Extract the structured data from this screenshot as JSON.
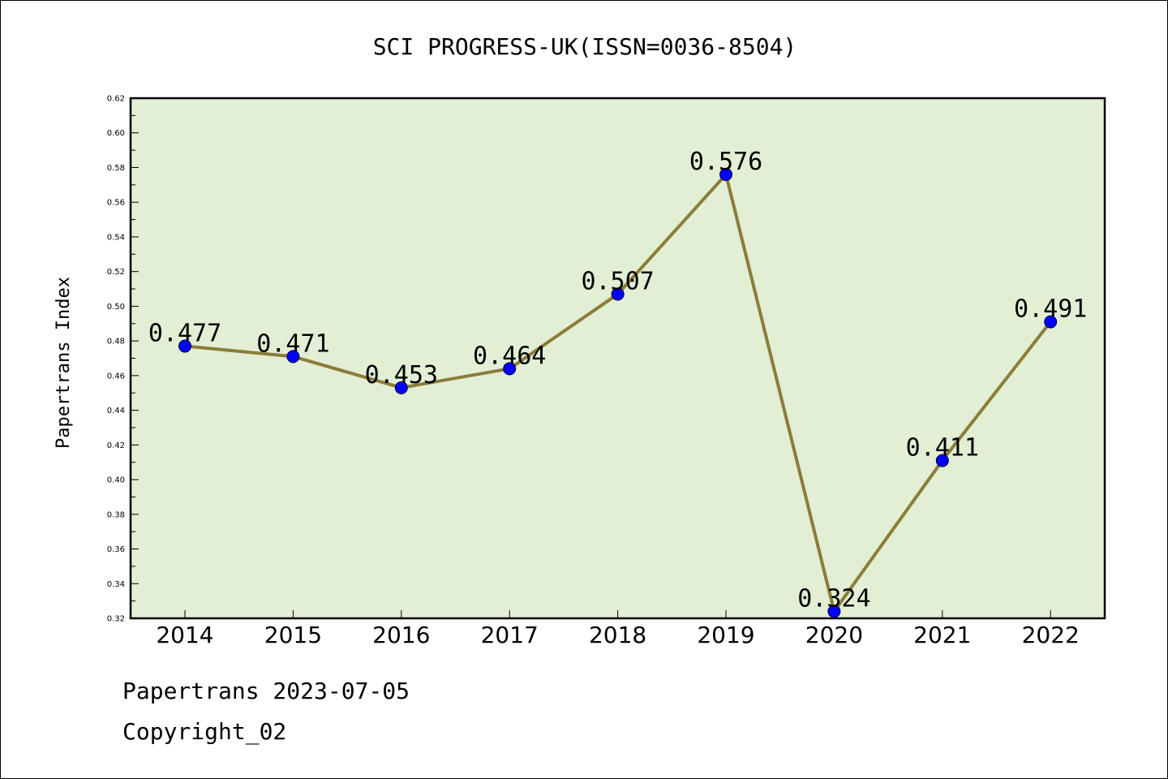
{
  "footer": {
    "line1": "Papertrans 2023-07-05",
    "line2": "Copyright_02"
  },
  "chart_data": {
    "type": "line",
    "title": "SCI PROGRESS-UK(ISSN=0036-8504)",
    "xlabel": "",
    "ylabel": "Papertrans Index",
    "categories": [
      "2014",
      "2015",
      "2016",
      "2017",
      "2018",
      "2019",
      "2020",
      "2021",
      "2022"
    ],
    "values": [
      0.477,
      0.471,
      0.453,
      0.464,
      0.507,
      0.576,
      0.324,
      0.411,
      0.491
    ],
    "data_labels": [
      "0.477",
      "0.471",
      "0.453",
      "0.464",
      "0.507",
      "0.576",
      "0.324",
      "0.411",
      "0.491"
    ],
    "ylim": [
      0.32,
      0.62
    ],
    "yticks": [
      "0.32",
      "0.34",
      "0.36",
      "0.38",
      "0.40",
      "0.42",
      "0.44",
      "0.46",
      "0.48",
      "0.50",
      "0.52",
      "0.54",
      "0.56",
      "0.58",
      "0.60",
      "0.62"
    ],
    "grid": false,
    "legend": "none",
    "colors": {
      "plot_background": "#e2efd5",
      "line": "#8b7d38",
      "marker": "#0000ff"
    }
  }
}
